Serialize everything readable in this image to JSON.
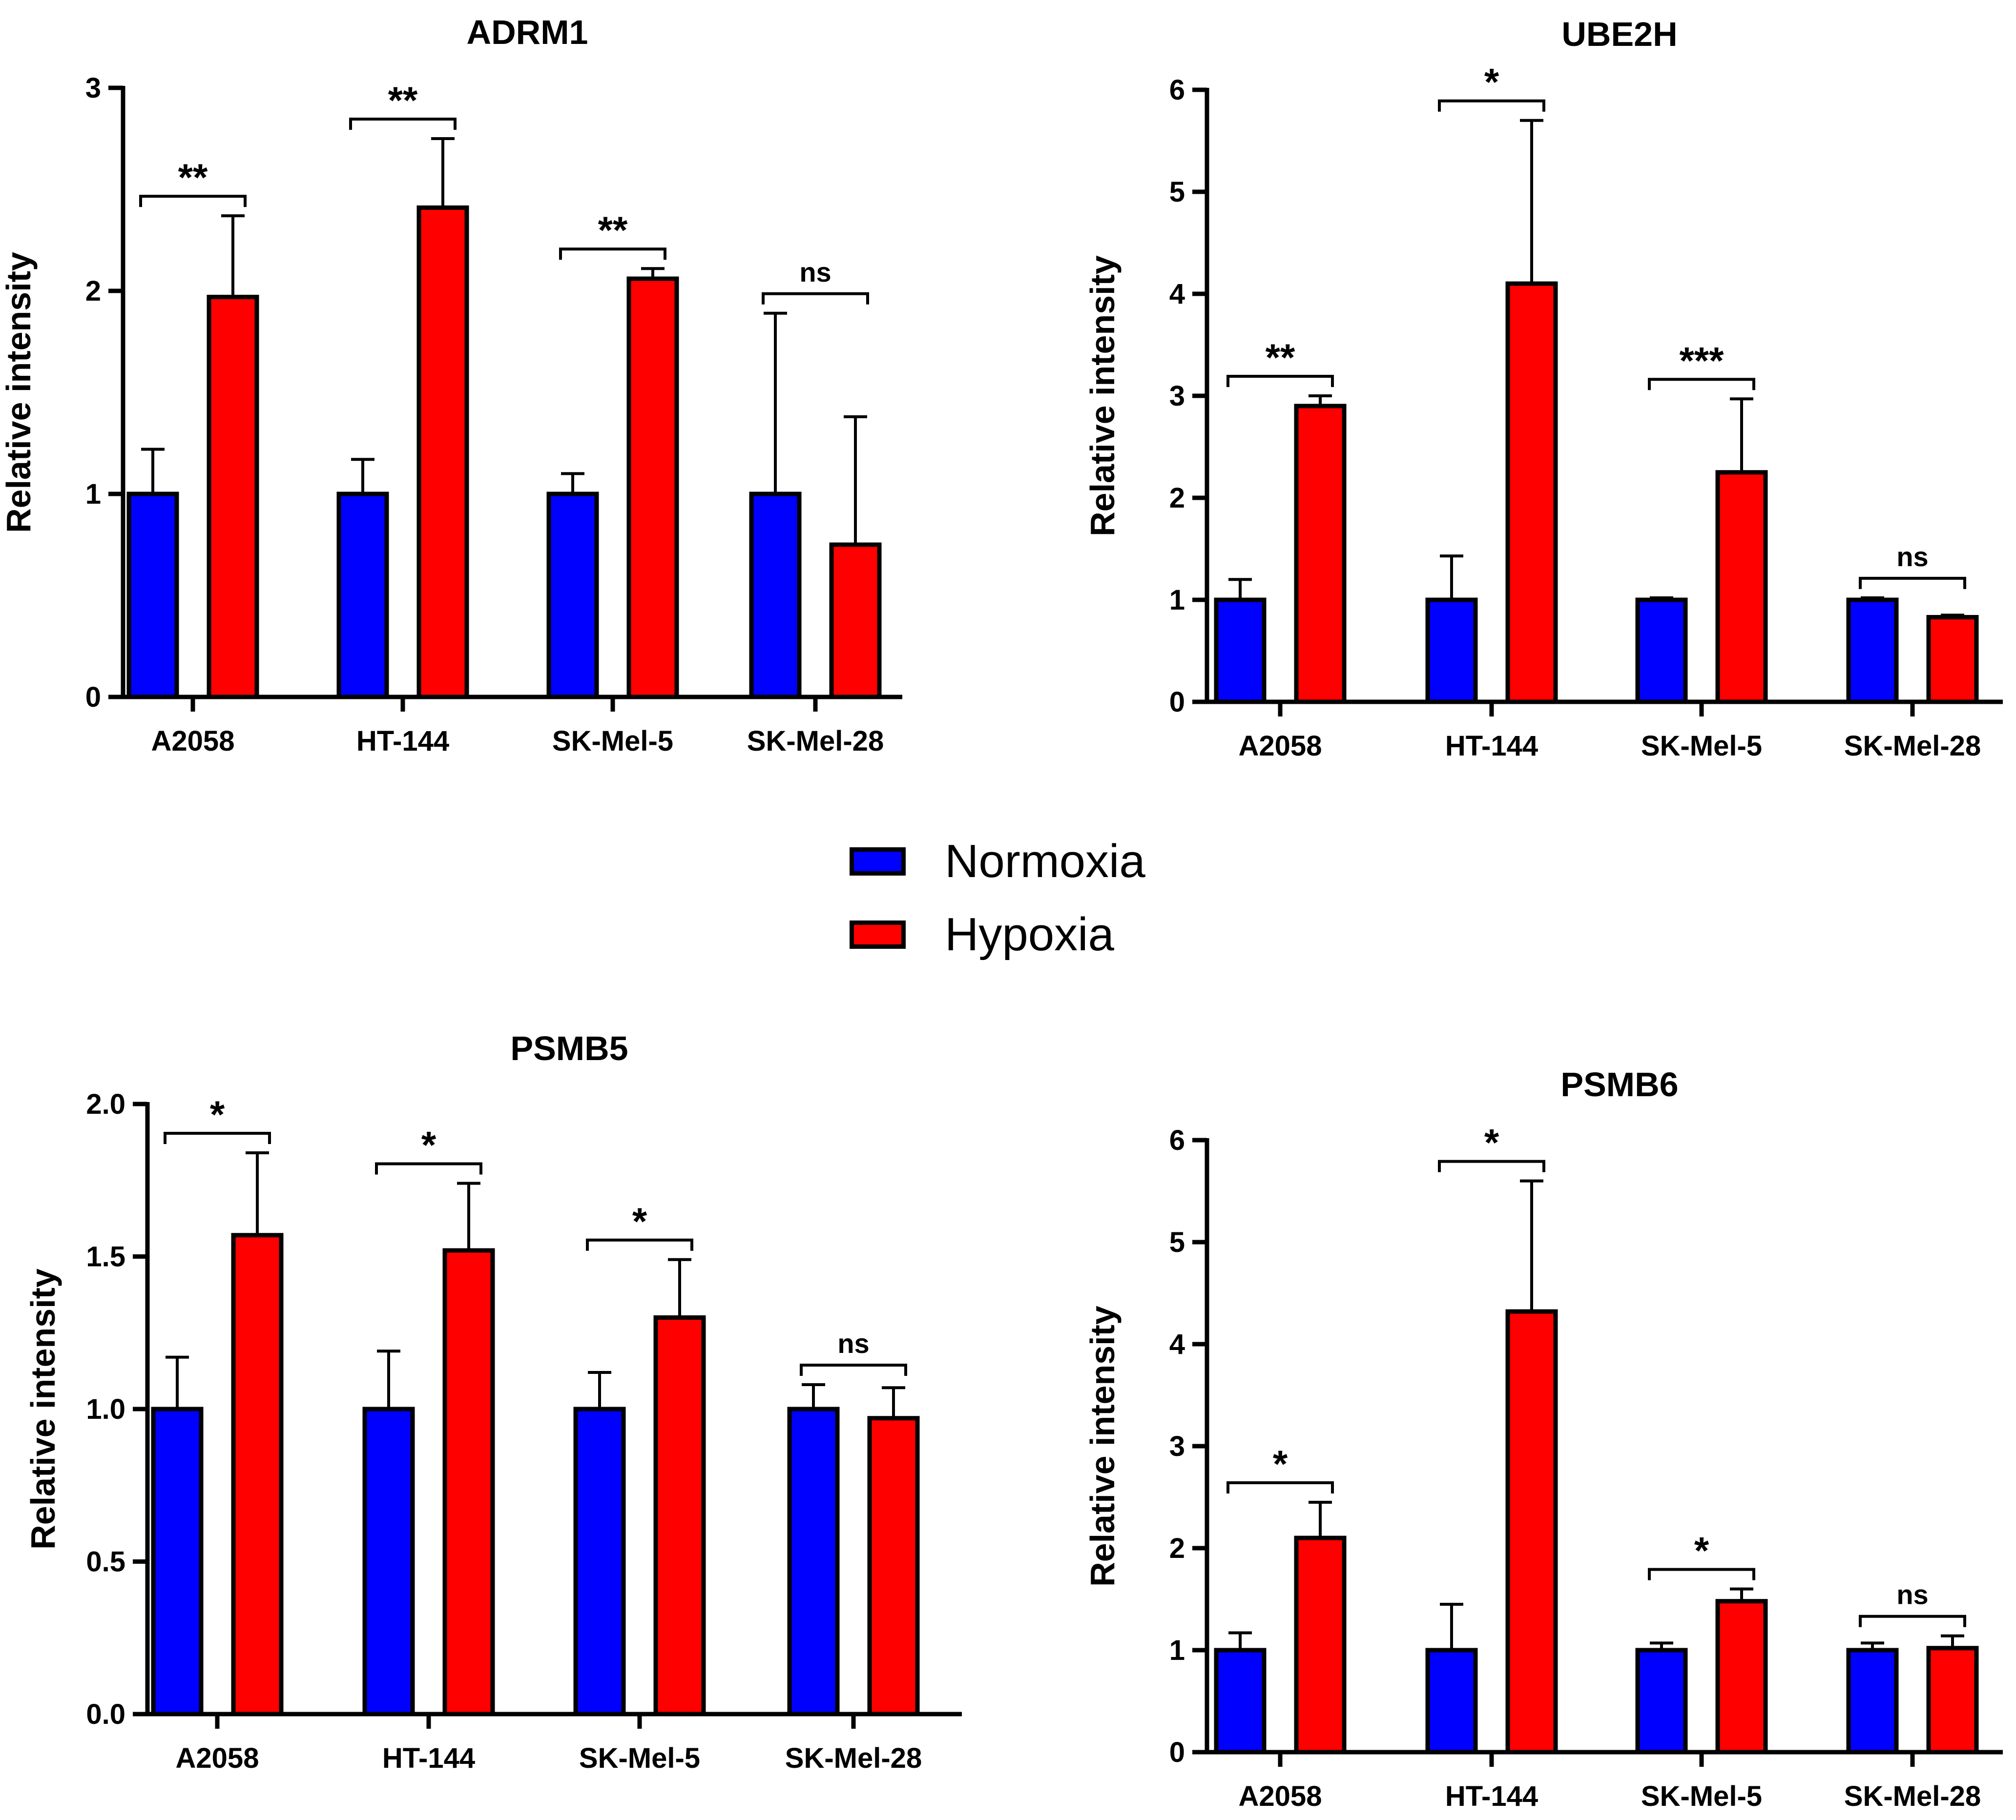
{
  "legend": {
    "items": [
      {
        "label": "Normoxia",
        "color": "#0000ff"
      },
      {
        "label": "Hypoxia",
        "color": "#ff0000"
      }
    ]
  },
  "chart_data": [
    {
      "type": "bar",
      "title": "ADRM1",
      "ylabel": "Relative intensity",
      "ylim": [
        0,
        3
      ],
      "yticks": [
        "0",
        "1",
        "2",
        "3"
      ],
      "categories": [
        "A2058",
        "HT-144",
        "SK-Mel-5",
        "SK-Mel-28"
      ],
      "series": [
        {
          "name": "Normoxia",
          "color": "#0000ff",
          "values": [
            1.0,
            1.0,
            1.0,
            1.0
          ],
          "errors": [
            0.22,
            0.17,
            0.1,
            0.89
          ]
        },
        {
          "name": "Hypoxia",
          "color": "#ff0000",
          "values": [
            1.97,
            2.41,
            2.06,
            0.75
          ],
          "errors": [
            0.4,
            0.34,
            0.05,
            0.63
          ]
        }
      ],
      "significance": [
        "**",
        "**",
        "**",
        "ns"
      ]
    },
    {
      "type": "bar",
      "title": "UBE2H",
      "ylabel": "Relative intensity",
      "ylim": [
        0,
        6
      ],
      "yticks": [
        "0",
        "1",
        "2",
        "3",
        "4",
        "5",
        "6"
      ],
      "categories": [
        "A2058",
        "HT-144",
        "SK-Mel-5",
        "SK-Mel-28"
      ],
      "series": [
        {
          "name": "Normoxia",
          "color": "#0000ff",
          "values": [
            1.0,
            1.0,
            1.0,
            1.0
          ],
          "errors": [
            0.2,
            0.43,
            0.02,
            0.02
          ]
        },
        {
          "name": "Hypoxia",
          "color": "#ff0000",
          "values": [
            2.9,
            4.1,
            2.25,
            0.83
          ],
          "errors": [
            0.1,
            1.6,
            0.72,
            0.02
          ]
        }
      ],
      "significance": [
        "**",
        "*",
        "***",
        "ns"
      ]
    },
    {
      "type": "bar",
      "title": "PSMB5",
      "ylabel": "Relative intensity",
      "ylim": [
        0,
        2
      ],
      "yticks": [
        "0.0",
        "0.5",
        "1.0",
        "1.5",
        "2.0"
      ],
      "categories": [
        "A2058",
        "HT-144",
        "SK-Mel-5",
        "SK-Mel-28"
      ],
      "series": [
        {
          "name": "Normoxia",
          "color": "#0000ff",
          "values": [
            1.0,
            1.0,
            1.0,
            1.0
          ],
          "errors": [
            0.17,
            0.19,
            0.12,
            0.08
          ]
        },
        {
          "name": "Hypoxia",
          "color": "#ff0000",
          "values": [
            1.57,
            1.52,
            1.3,
            0.97
          ],
          "errors": [
            0.27,
            0.22,
            0.19,
            0.1
          ]
        }
      ],
      "significance": [
        "*",
        "*",
        "*",
        "ns"
      ]
    },
    {
      "type": "bar",
      "title": "PSMB6",
      "ylabel": "Relative intensity",
      "ylim": [
        0,
        6
      ],
      "yticks": [
        "0",
        "1",
        "2",
        "3",
        "4",
        "5",
        "6"
      ],
      "categories": [
        "A2058",
        "HT-144",
        "SK-Mel-5",
        "SK-Mel-28"
      ],
      "series": [
        {
          "name": "Normoxia",
          "color": "#0000ff",
          "values": [
            1.0,
            1.0,
            1.0,
            1.0
          ],
          "errors": [
            0.17,
            0.45,
            0.07,
            0.07
          ]
        },
        {
          "name": "Hypoxia",
          "color": "#ff0000",
          "values": [
            2.1,
            4.32,
            1.48,
            1.02
          ],
          "errors": [
            0.35,
            1.28,
            0.12,
            0.12
          ]
        }
      ],
      "significance": [
        "*",
        "*",
        "*",
        "ns"
      ]
    }
  ]
}
